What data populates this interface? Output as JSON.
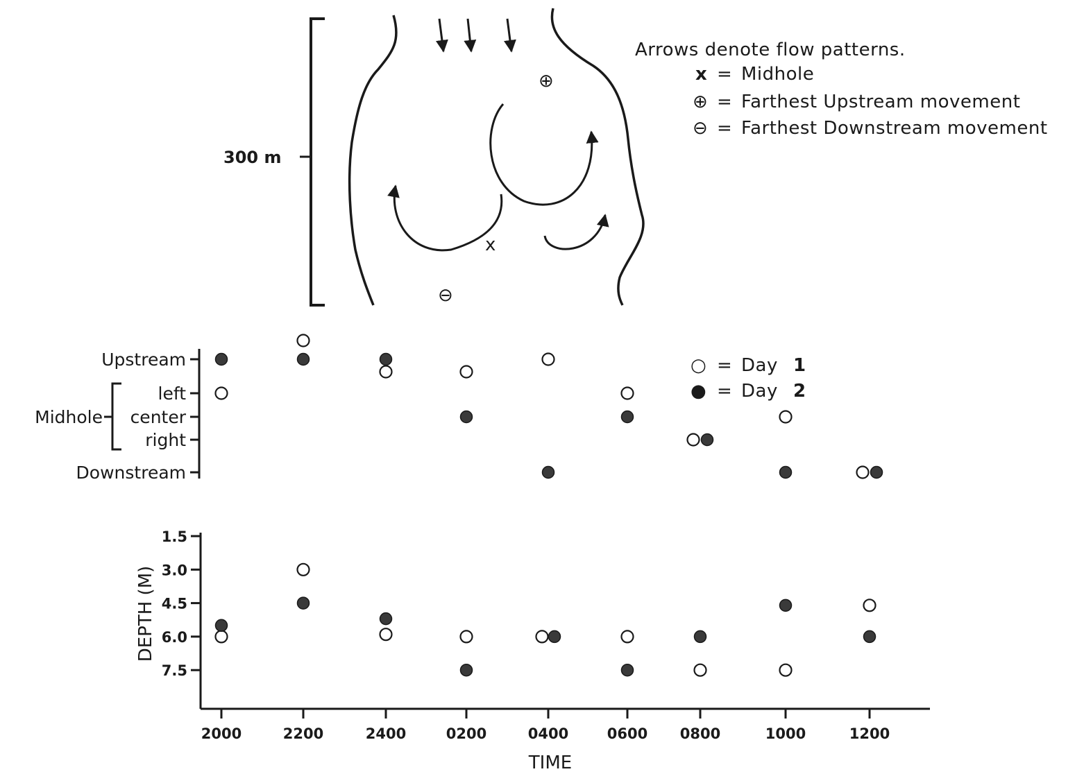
{
  "diagram": {
    "scale_label": "300 m",
    "legend_title": "Arrows denote flow patterns.",
    "legend_items": [
      {
        "symbol": "x",
        "label": "Midhole"
      },
      {
        "symbol": "⊕",
        "label": "Farthest Upstream movement"
      },
      {
        "symbol": "⊖",
        "label": "Farthest Downstream movement"
      }
    ],
    "midhole_mark": "x",
    "upstream_mark": "⊕",
    "downstream_mark": "⊖"
  },
  "chart_data": [
    {
      "type": "scatter",
      "x_categories": [
        "2000",
        "2200",
        "2400",
        "0200",
        "0400",
        "0600",
        "0800",
        "1000",
        "1200"
      ],
      "y_categories": [
        "Upstream",
        "left",
        "center",
        "right",
        "Downstream"
      ],
      "y_group_label": "Midhole",
      "legend": [
        {
          "symbol": "○",
          "eq": "=",
          "label": "Day",
          "num": "1"
        },
        {
          "symbol": "●",
          "eq": "=",
          "label": "Day",
          "num": "2"
        }
      ],
      "series": [
        {
          "name": "Day 1",
          "marker": "open",
          "points": [
            {
              "x": "2000",
              "y": "left"
            },
            {
              "x": "2200",
              "y": "beyond Upstream"
            },
            {
              "x": "2400",
              "y": "between Upstream and left"
            },
            {
              "x": "0200",
              "y": "between Upstream and left"
            },
            {
              "x": "0400",
              "y": "Upstream"
            },
            {
              "x": "0600",
              "y": "left"
            },
            {
              "x": "0800",
              "y": "right"
            },
            {
              "x": "1000",
              "y": "center"
            },
            {
              "x": "1200",
              "y": "Downstream"
            }
          ]
        },
        {
          "name": "Day 2",
          "marker": "filled",
          "points": [
            {
              "x": "2000",
              "y": "Upstream"
            },
            {
              "x": "2200",
              "y": "Upstream"
            },
            {
              "x": "2400",
              "y": "Upstream"
            },
            {
              "x": "0200",
              "y": "center"
            },
            {
              "x": "0400",
              "y": "Downstream"
            },
            {
              "x": "0600",
              "y": "center"
            },
            {
              "x": "0800",
              "y": "right"
            },
            {
              "x": "1000",
              "y": "Downstream"
            },
            {
              "x": "1200",
              "y": "Downstream"
            }
          ]
        }
      ]
    },
    {
      "type": "scatter",
      "xlabel": "TIME",
      "ylabel": "DEPTH (M)",
      "x_categories": [
        "2000",
        "2200",
        "2400",
        "0200",
        "0400",
        "0600",
        "0800",
        "1000",
        "1200"
      ],
      "yticks": [
        "1.5",
        "3.0",
        "4.5",
        "6.0",
        "7.5"
      ],
      "y_inverted": true,
      "ylim": [
        1.5,
        9.0
      ],
      "series": [
        {
          "name": "Day 1",
          "marker": "open",
          "points": [
            {
              "x": "2000",
              "y": 6.0
            },
            {
              "x": "2200",
              "y": 3.0
            },
            {
              "x": "2400",
              "y": 5.9
            },
            {
              "x": "0200",
              "y": 6.0
            },
            {
              "x": "0400",
              "y": 6.0
            },
            {
              "x": "0600",
              "y": 6.0
            },
            {
              "x": "0800",
              "y": 7.5
            },
            {
              "x": "1000",
              "y": 7.5
            },
            {
              "x": "1200",
              "y": 4.6
            }
          ]
        },
        {
          "name": "Day 2",
          "marker": "filled",
          "points": [
            {
              "x": "2000",
              "y": 5.5
            },
            {
              "x": "2200",
              "y": 4.5
            },
            {
              "x": "2400",
              "y": 5.2
            },
            {
              "x": "0200",
              "y": 7.5
            },
            {
              "x": "0400",
              "y": 6.0
            },
            {
              "x": "0600",
              "y": 7.5
            },
            {
              "x": "0800",
              "y": 6.0
            },
            {
              "x": "1000",
              "y": 4.6
            },
            {
              "x": "1200",
              "y": 6.0
            }
          ]
        }
      ]
    }
  ]
}
